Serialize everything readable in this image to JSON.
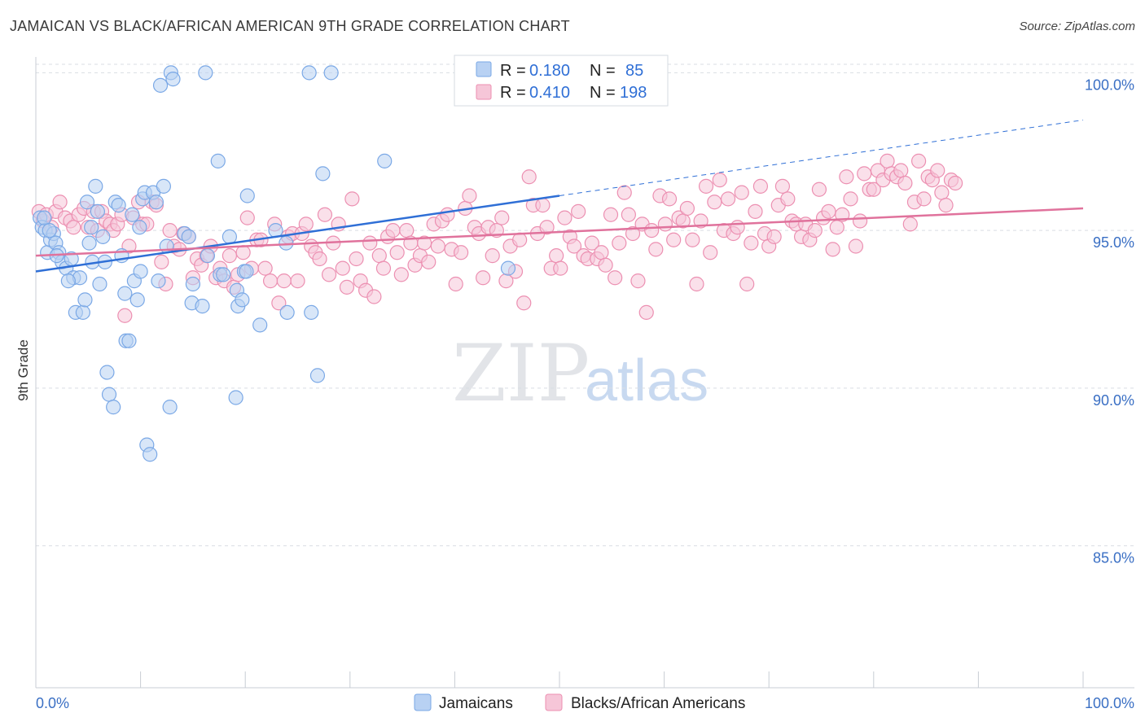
{
  "title": "JAMAICAN VS BLACK/AFRICAN AMERICAN 9TH GRADE CORRELATION CHART",
  "source": "Source: ZipAtlas.com",
  "watermark": {
    "zip": "ZIP",
    "atlas": "atlas"
  },
  "colors": {
    "blue": "#7aa8e6",
    "blue_fill": "#b8d1f3",
    "blue_line": "#2f6fd6",
    "pink": "#ec8fb1",
    "pink_fill": "#f6c6d8",
    "pink_line": "#e0729c",
    "grid": "#d9dde3",
    "tick_label": "#3a6fc4"
  },
  "legend": {
    "r_label": "R =",
    "n_label": "N =",
    "rows": [
      {
        "r": "0.180",
        "n": "85",
        "color": "blue"
      },
      {
        "r": "0.410",
        "n": "198",
        "color": "pink"
      }
    ]
  },
  "bottom_legend": [
    {
      "label": "Jamaicans",
      "color": "blue"
    },
    {
      "label": "Blacks/African Americans",
      "color": "pink"
    }
  ],
  "chart_data": {
    "type": "scatter",
    "title": "JAMAICAN VS BLACK/AFRICAN AMERICAN 9TH GRADE CORRELATION CHART",
    "xlabel": "",
    "ylabel": "9th Grade",
    "xlim": [
      0,
      100
    ],
    "ylim": [
      80.5,
      100.5
    ],
    "x_tick_labels": [
      "0.0%",
      "100.0%"
    ],
    "y_ticks": [
      85,
      90,
      95,
      100
    ],
    "y_tick_labels": [
      "85.0%",
      "90.0%",
      "95.0%",
      "100.0%"
    ],
    "grid": true,
    "legend_position": "top-center",
    "series": [
      {
        "name": "Jamaicans",
        "r": 0.18,
        "n": 85,
        "trend": {
          "x": [
            0,
            50
          ],
          "y": [
            93.7,
            96.1
          ],
          "dashed_to": [
            100,
            98.5
          ]
        },
        "points": [
          [
            0.4,
            95.4
          ],
          [
            0.6,
            95.1
          ],
          [
            0.9,
            95.0
          ],
          [
            1.1,
            94.3
          ],
          [
            1.4,
            94.7
          ],
          [
            1.7,
            94.9
          ],
          [
            1.9,
            94.6
          ],
          [
            2.2,
            94.3
          ],
          [
            2.5,
            94.0
          ],
          [
            2.9,
            93.8
          ],
          [
            3.4,
            94.1
          ],
          [
            3.6,
            93.5
          ],
          [
            3.8,
            92.4
          ],
          [
            4.2,
            93.5
          ],
          [
            4.5,
            92.4
          ],
          [
            4.7,
            92.8
          ],
          [
            4.9,
            95.9
          ],
          [
            5.1,
            94.6
          ],
          [
            5.4,
            94.0
          ],
          [
            5.7,
            96.4
          ],
          [
            5.9,
            95.6
          ],
          [
            6.1,
            93.3
          ],
          [
            6.4,
            94.8
          ],
          [
            6.6,
            94.0
          ],
          [
            6.8,
            90.5
          ],
          [
            7.0,
            89.8
          ],
          [
            7.4,
            89.4
          ],
          [
            7.6,
            95.9
          ],
          [
            7.9,
            95.8
          ],
          [
            8.2,
            94.2
          ],
          [
            8.5,
            93.0
          ],
          [
            8.6,
            91.5
          ],
          [
            8.9,
            91.5
          ],
          [
            9.2,
            95.5
          ],
          [
            9.4,
            93.4
          ],
          [
            9.7,
            92.8
          ],
          [
            10.0,
            93.7
          ],
          [
            10.2,
            96.0
          ],
          [
            10.4,
            96.2
          ],
          [
            10.6,
            88.2
          ],
          [
            10.9,
            87.9
          ],
          [
            11.2,
            96.2
          ],
          [
            11.5,
            95.9
          ],
          [
            11.7,
            93.4
          ],
          [
            11.9,
            99.6
          ],
          [
            12.2,
            96.4
          ],
          [
            12.5,
            94.5
          ],
          [
            12.8,
            89.4
          ],
          [
            12.9,
            100.0
          ],
          [
            13.1,
            99.8
          ],
          [
            14.2,
            94.9
          ],
          [
            14.6,
            94.8
          ],
          [
            14.9,
            92.7
          ],
          [
            15.0,
            93.3
          ],
          [
            15.9,
            92.6
          ],
          [
            16.2,
            100.0
          ],
          [
            16.4,
            94.2
          ],
          [
            17.4,
            97.2
          ],
          [
            17.6,
            93.6
          ],
          [
            17.9,
            93.6
          ],
          [
            19.1,
            89.7
          ],
          [
            19.2,
            93.1
          ],
          [
            19.3,
            92.6
          ],
          [
            19.7,
            92.8
          ],
          [
            19.9,
            93.7
          ],
          [
            20.1,
            93.7
          ],
          [
            20.2,
            96.1
          ],
          [
            21.4,
            92.0
          ],
          [
            22.9,
            95.0
          ],
          [
            23.9,
            94.6
          ],
          [
            24.0,
            92.4
          ],
          [
            26.1,
            100.0
          ],
          [
            26.3,
            92.4
          ],
          [
            26.9,
            90.4
          ],
          [
            27.4,
            96.8
          ],
          [
            28.2,
            100.0
          ],
          [
            33.3,
            97.2
          ],
          [
            45.1,
            93.8
          ],
          [
            0.8,
            95.4
          ],
          [
            1.3,
            95.0
          ],
          [
            2.0,
            94.2
          ],
          [
            3.1,
            93.4
          ],
          [
            5.3,
            95.1
          ],
          [
            9.9,
            95.1
          ],
          [
            18.5,
            94.8
          ]
        ]
      },
      {
        "name": "Blacks/African Americans",
        "r": 0.41,
        "n": 198,
        "trend": {
          "x": [
            0,
            100
          ],
          "y": [
            94.2,
            95.7
          ]
        },
        "points": [
          [
            0.3,
            95.6
          ],
          [
            0.7,
            95.3
          ],
          [
            1.0,
            95.5
          ],
          [
            1.5,
            95.1
          ],
          [
            1.9,
            95.6
          ],
          [
            2.3,
            95.9
          ],
          [
            2.8,
            95.4
          ],
          [
            3.3,
            95.3
          ],
          [
            3.6,
            95.1
          ],
          [
            4.1,
            95.5
          ],
          [
            4.6,
            95.7
          ],
          [
            5.0,
            95.1
          ],
          [
            5.5,
            95.6
          ],
          [
            5.9,
            95.0
          ],
          [
            6.3,
            95.6
          ],
          [
            6.7,
            95.3
          ],
          [
            7.1,
            95.2
          ],
          [
            7.4,
            95.0
          ],
          [
            7.8,
            95.2
          ],
          [
            8.2,
            95.5
          ],
          [
            8.5,
            92.3
          ],
          [
            8.9,
            94.5
          ],
          [
            9.3,
            95.4
          ],
          [
            9.8,
            95.9
          ],
          [
            10.2,
            95.2
          ],
          [
            10.6,
            95.2
          ],
          [
            11.1,
            95.9
          ],
          [
            11.5,
            95.8
          ],
          [
            12.0,
            94.0
          ],
          [
            12.4,
            93.3
          ],
          [
            12.8,
            95.0
          ],
          [
            13.2,
            94.5
          ],
          [
            13.7,
            94.4
          ],
          [
            14.1,
            94.9
          ],
          [
            14.6,
            94.8
          ],
          [
            15.0,
            93.5
          ],
          [
            15.4,
            94.1
          ],
          [
            15.8,
            93.9
          ],
          [
            16.3,
            94.2
          ],
          [
            16.7,
            94.5
          ],
          [
            17.2,
            93.5
          ],
          [
            17.6,
            93.8
          ],
          [
            18.0,
            93.4
          ],
          [
            18.5,
            94.2
          ],
          [
            18.9,
            93.2
          ],
          [
            19.3,
            93.6
          ],
          [
            19.8,
            94.3
          ],
          [
            20.2,
            95.4
          ],
          [
            20.6,
            93.8
          ],
          [
            21.1,
            94.7
          ],
          [
            21.5,
            94.7
          ],
          [
            21.9,
            93.8
          ],
          [
            22.4,
            93.4
          ],
          [
            22.8,
            95.2
          ],
          [
            23.2,
            92.7
          ],
          [
            23.7,
            93.4
          ],
          [
            24.1,
            94.8
          ],
          [
            24.5,
            94.9
          ],
          [
            25.0,
            93.4
          ],
          [
            25.4,
            94.9
          ],
          [
            25.8,
            95.2
          ],
          [
            26.3,
            94.5
          ],
          [
            26.7,
            94.3
          ],
          [
            27.1,
            94.1
          ],
          [
            27.6,
            95.5
          ],
          [
            28.0,
            93.6
          ],
          [
            28.4,
            94.6
          ],
          [
            28.9,
            95.2
          ],
          [
            29.3,
            93.8
          ],
          [
            29.7,
            93.2
          ],
          [
            30.2,
            96.0
          ],
          [
            30.6,
            94.1
          ],
          [
            31.0,
            93.4
          ],
          [
            31.5,
            93.1
          ],
          [
            31.9,
            94.6
          ],
          [
            32.3,
            92.9
          ],
          [
            32.8,
            94.2
          ],
          [
            33.2,
            93.8
          ],
          [
            33.6,
            94.8
          ],
          [
            34.1,
            95.0
          ],
          [
            34.5,
            94.3
          ],
          [
            34.9,
            93.6
          ],
          [
            35.4,
            95.0
          ],
          [
            35.8,
            94.6
          ],
          [
            36.2,
            93.9
          ],
          [
            36.7,
            94.2
          ],
          [
            37.1,
            94.6
          ],
          [
            37.5,
            94.0
          ],
          [
            38.0,
            95.2
          ],
          [
            38.4,
            94.5
          ],
          [
            38.8,
            95.3
          ],
          [
            39.3,
            95.5
          ],
          [
            39.7,
            94.4
          ],
          [
            40.1,
            93.3
          ],
          [
            40.6,
            94.3
          ],
          [
            41.0,
            95.7
          ],
          [
            41.4,
            96.1
          ],
          [
            41.9,
            95.1
          ],
          [
            42.3,
            94.9
          ],
          [
            42.7,
            93.5
          ],
          [
            43.2,
            95.1
          ],
          [
            43.6,
            94.2
          ],
          [
            44.0,
            95.0
          ],
          [
            44.5,
            95.4
          ],
          [
            44.9,
            93.4
          ],
          [
            45.3,
            94.5
          ],
          [
            45.8,
            93.7
          ],
          [
            46.2,
            94.7
          ],
          [
            46.6,
            92.7
          ],
          [
            47.1,
            96.7
          ],
          [
            47.5,
            95.8
          ],
          [
            47.9,
            94.9
          ],
          [
            48.4,
            95.8
          ],
          [
            48.8,
            95.1
          ],
          [
            49.2,
            93.8
          ],
          [
            49.7,
            94.2
          ],
          [
            50.1,
            93.8
          ],
          [
            50.5,
            95.4
          ],
          [
            51.0,
            94.8
          ],
          [
            51.4,
            94.5
          ],
          [
            51.8,
            95.6
          ],
          [
            52.3,
            94.2
          ],
          [
            52.7,
            94.1
          ],
          [
            53.1,
            94.6
          ],
          [
            53.6,
            94.1
          ],
          [
            54.0,
            94.3
          ],
          [
            54.4,
            93.9
          ],
          [
            54.9,
            95.5
          ],
          [
            55.3,
            93.5
          ],
          [
            55.7,
            94.6
          ],
          [
            56.2,
            96.2
          ],
          [
            56.6,
            95.5
          ],
          [
            57.0,
            94.9
          ],
          [
            57.5,
            93.4
          ],
          [
            57.9,
            95.2
          ],
          [
            58.3,
            92.4
          ],
          [
            58.8,
            95.0
          ],
          [
            59.2,
            94.4
          ],
          [
            59.6,
            96.1
          ],
          [
            60.1,
            95.2
          ],
          [
            60.5,
            96.0
          ],
          [
            60.9,
            94.7
          ],
          [
            61.4,
            95.4
          ],
          [
            61.8,
            95.3
          ],
          [
            62.2,
            95.7
          ],
          [
            62.7,
            94.7
          ],
          [
            63.1,
            93.3
          ],
          [
            63.5,
            95.3
          ],
          [
            64.0,
            96.4
          ],
          [
            64.4,
            94.3
          ],
          [
            64.8,
            95.9
          ],
          [
            65.3,
            96.6
          ],
          [
            65.7,
            95.0
          ],
          [
            66.1,
            96.0
          ],
          [
            66.6,
            94.9
          ],
          [
            67.0,
            95.1
          ],
          [
            67.4,
            96.2
          ],
          [
            67.9,
            93.3
          ],
          [
            68.3,
            94.6
          ],
          [
            68.7,
            95.6
          ],
          [
            69.2,
            96.4
          ],
          [
            69.6,
            94.9
          ],
          [
            70.0,
            94.5
          ],
          [
            70.5,
            94.8
          ],
          [
            70.9,
            95.8
          ],
          [
            71.3,
            96.4
          ],
          [
            71.8,
            96.0
          ],
          [
            72.2,
            95.3
          ],
          [
            72.6,
            95.2
          ],
          [
            73.1,
            94.8
          ],
          [
            73.5,
            95.2
          ],
          [
            73.9,
            94.7
          ],
          [
            74.4,
            95.0
          ],
          [
            74.8,
            96.3
          ],
          [
            75.2,
            95.4
          ],
          [
            75.7,
            95.6
          ],
          [
            76.1,
            94.4
          ],
          [
            76.5,
            95.1
          ],
          [
            77.0,
            95.5
          ],
          [
            77.4,
            96.7
          ],
          [
            77.8,
            96.0
          ],
          [
            78.3,
            94.5
          ],
          [
            78.7,
            95.3
          ],
          [
            79.1,
            96.8
          ],
          [
            79.6,
            96.3
          ],
          [
            80.0,
            96.3
          ],
          [
            80.4,
            96.9
          ],
          [
            80.9,
            96.6
          ],
          [
            81.3,
            97.2
          ],
          [
            81.7,
            96.8
          ],
          [
            82.2,
            96.7
          ],
          [
            82.6,
            96.9
          ],
          [
            83.0,
            96.5
          ],
          [
            83.5,
            95.2
          ],
          [
            83.9,
            95.9
          ],
          [
            84.3,
            97.2
          ],
          [
            84.8,
            96.0
          ],
          [
            85.2,
            96.7
          ],
          [
            85.6,
            96.6
          ],
          [
            86.1,
            96.9
          ],
          [
            86.5,
            96.2
          ],
          [
            86.9,
            95.8
          ],
          [
            87.4,
            96.6
          ],
          [
            87.8,
            96.5
          ]
        ]
      }
    ]
  }
}
